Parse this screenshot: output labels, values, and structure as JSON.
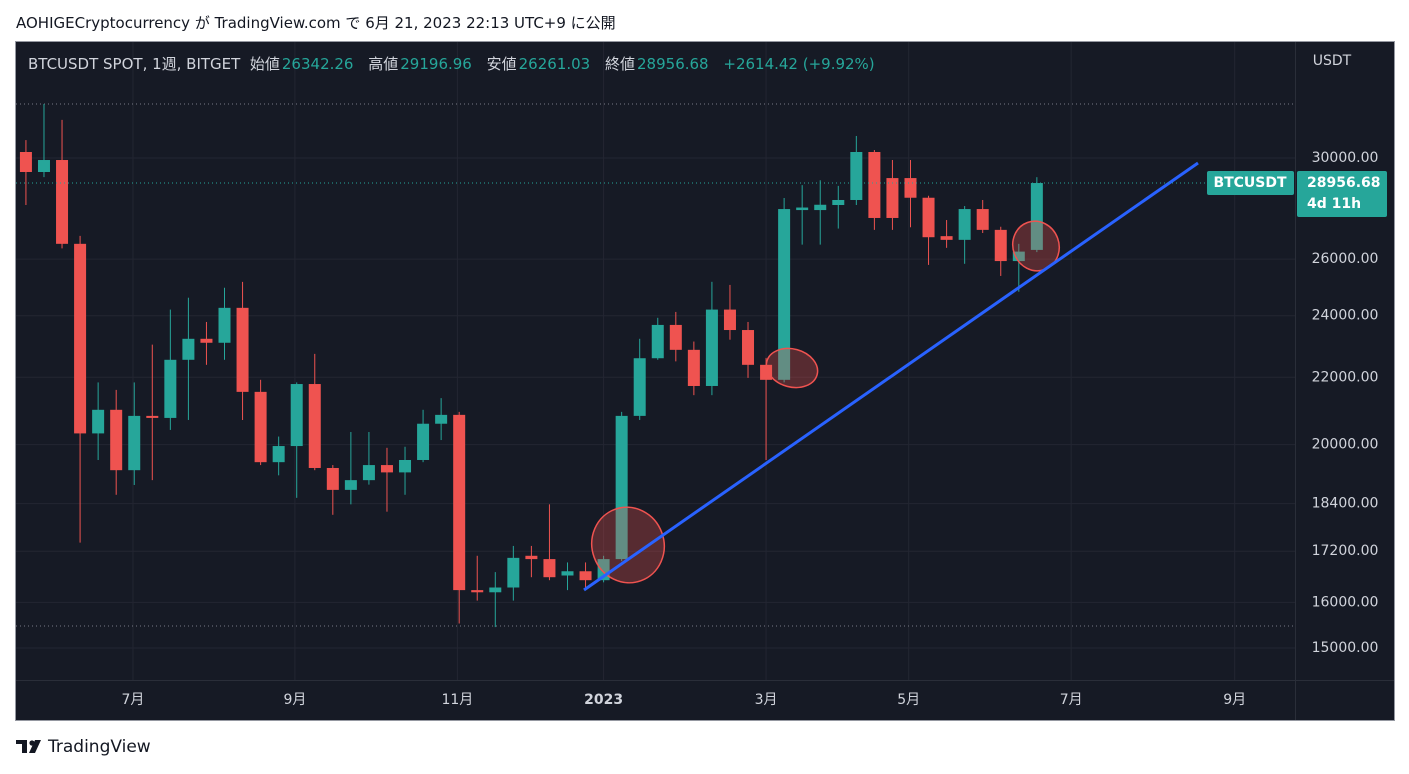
{
  "header": {
    "text": "AOHIGECryptocurrency が TradingView.com で 6月 21, 2023 22:13 UTC+9 に公開"
  },
  "footer": {
    "brand": "TradingView"
  },
  "chart_data": {
    "type": "candlestick",
    "symbol_label": "BTCUSDT SPOT, 1週, BITGET",
    "ohlc_labels": [
      "始値",
      "高値",
      "安値",
      "終値"
    ],
    "change_label": "+2614.42 (+9.92%)",
    "currency": "USDT",
    "price_tag": {
      "symbol": "BTCUSDT",
      "countdown": "4d 11h"
    },
    "colors": {
      "up": "#26a69a",
      "down": "#ef5350"
    },
    "log_scale": true,
    "grid": true,
    "open": [
      30256,
      29412,
      29915,
      26570,
      20320,
      21010,
      19290,
      20830,
      20770,
      22550,
      23230,
      23100,
      24270,
      21550,
      19510,
      19960,
      21790,
      19350,
      18760,
      19020,
      19430,
      19230,
      19570,
      20600,
      20860,
      16280,
      16230,
      16340,
      17090,
      17010,
      16620,
      16720,
      16510,
      17010,
      20830,
      22600,
      23690,
      22870,
      21730,
      24210,
      23520,
      22390,
      21920,
      27870,
      27870,
      28070,
      28270,
      30256,
      29160,
      29160,
      28360,
      26860,
      26720,
      27910,
      27100,
      25930,
      26342.26
    ],
    "high": [
      30770,
      32380,
      31660,
      26870,
      21840,
      21610,
      21840,
      23040,
      24210,
      24620,
      23790,
      24970,
      25180,
      21920,
      20230,
      21840,
      22740,
      19430,
      20360,
      20360,
      19910,
      19940,
      21010,
      21360,
      20950,
      17090,
      16700,
      17330,
      17330,
      18380,
      16930,
      16930,
      17090,
      20950,
      23230,
      23930,
      24130,
      23140,
      25180,
      25070,
      23790,
      22610,
      28350,
      28870,
      29070,
      28840,
      30950,
      30340,
      29915,
      29915,
      28440,
      27480,
      28030,
      28270,
      27220,
      26570,
      29196.96
    ],
    "low": [
      28070,
      29200,
      26400,
      17410,
      19570,
      18630,
      18890,
      19020,
      20420,
      20710,
      22390,
      22550,
      20710,
      19430,
      19150,
      18550,
      19290,
      18110,
      18380,
      18900,
      18190,
      18630,
      19510,
      20130,
      15530,
      16040,
      15450,
      16040,
      16580,
      16510,
      16280,
      16320,
      16460,
      16960,
      20710,
      22550,
      22500,
      21450,
      21450,
      23200,
      21980,
      19570,
      21840,
      26540,
      26540,
      27150,
      28070,
      27100,
      27100,
      27200,
      25790,
      26420,
      25830,
      26980,
      25390,
      24830,
      26261.03
    ],
    "close": [
      29412,
      29915,
      26570,
      20320,
      21010,
      19290,
      20830,
      20770,
      22550,
      23230,
      23100,
      24270,
      21550,
      19510,
      19960,
      21790,
      19350,
      18760,
      19020,
      19430,
      19230,
      19570,
      20600,
      20860,
      16280,
      16230,
      16340,
      17040,
      17010,
      16580,
      16720,
      16510,
      17010,
      20830,
      22600,
      23690,
      22870,
      21730,
      24210,
      23520,
      22390,
      21920,
      27910,
      27970,
      28080,
      28270,
      30256,
      27560,
      27560,
      28360,
      26820,
      26720,
      27910,
      27100,
      25930,
      26280,
      28956.68
    ],
    "ylim": [
      14336,
      35350
    ],
    "yticks": [
      {
        "value": 15000,
        "label": "15000.00"
      },
      {
        "value": 16000,
        "label": "16000.00"
      },
      {
        "value": 17200,
        "label": "17200.00"
      },
      {
        "value": 18400,
        "label": "18400.00"
      },
      {
        "value": 20000,
        "label": "20000.00"
      },
      {
        "value": 22000,
        "label": "22000.00"
      },
      {
        "value": 24000,
        "label": "24000.00"
      },
      {
        "value": 26000,
        "label": "26000.00"
      },
      {
        "value": 30000,
        "label": "30000.00"
      }
    ],
    "xlim": [
      -0.55,
      70.3
    ],
    "xticks": [
      {
        "value": 5.93,
        "label": "7月"
      },
      {
        "value": 14.9,
        "label": "9月"
      },
      {
        "value": 23.9,
        "label": "11月"
      },
      {
        "value": 32.0,
        "label": "2023"
      },
      {
        "value": 41.0,
        "label": "3月"
      },
      {
        "value": 48.9,
        "label": "5月"
      },
      {
        "value": 57.9,
        "label": "7月"
      },
      {
        "value": 66.96,
        "label": "9月"
      }
    ]
  }
}
